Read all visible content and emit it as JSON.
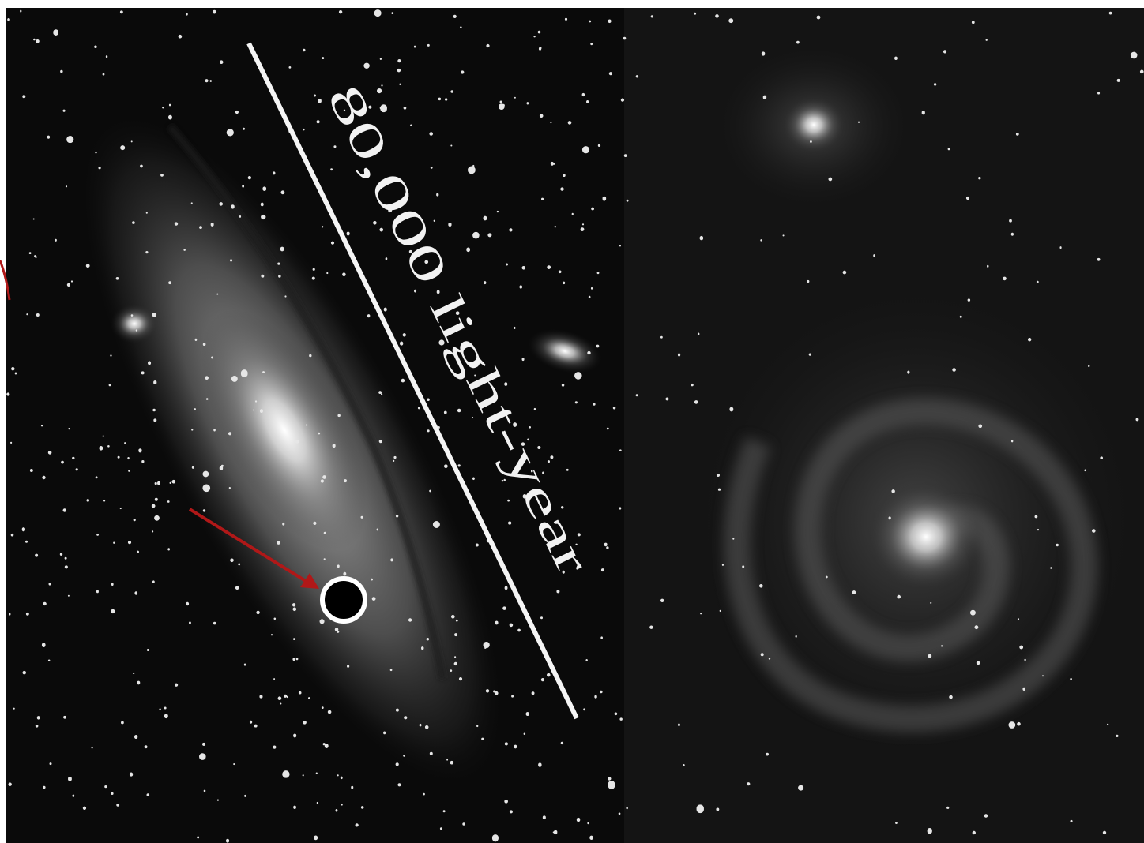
{
  "annotation": {
    "label": "80,000 light-year"
  }
}
